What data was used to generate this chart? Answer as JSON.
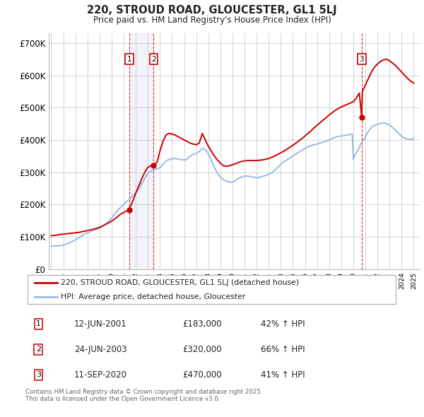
{
  "title": "220, STROUD ROAD, GLOUCESTER, GL1 5LJ",
  "subtitle": "Price paid vs. HM Land Registry's House Price Index (HPI)",
  "ylim": [
    0,
    730000
  ],
  "yticks": [
    0,
    100000,
    200000,
    300000,
    400000,
    500000,
    600000,
    700000
  ],
  "ytick_labels": [
    "£0",
    "£100K",
    "£200K",
    "£300K",
    "£400K",
    "£500K",
    "£600K",
    "£700K"
  ],
  "xlim": [
    1994.8,
    2025.5
  ],
  "background_color": "#ffffff",
  "grid_color": "#cccccc",
  "red_line_color": "#cc0000",
  "blue_line_color": "#99bbdd",
  "transactions": [
    {
      "id": 1,
      "year": 2001.45,
      "price": 183000,
      "date": "12-JUN-2001",
      "pct": "42%",
      "label": "£183,000"
    },
    {
      "id": 2,
      "year": 2003.48,
      "price": 320000,
      "date": "24-JUN-2003",
      "pct": "66%",
      "label": "£320,000"
    },
    {
      "id": 3,
      "year": 2020.69,
      "price": 470000,
      "date": "11-SEP-2020",
      "pct": "41%",
      "label": "£470,000"
    }
  ],
  "legend_line1": "220, STROUD ROAD, GLOUCESTER, GL1 5LJ (detached house)",
  "legend_line2": "HPI: Average price, detached house, Gloucester",
  "footnote": "Contains HM Land Registry data © Crown copyright and database right 2025.\nThis data is licensed under the Open Government Licence v3.0.",
  "hpi_years": [
    1995.0,
    1995.083,
    1995.167,
    1995.25,
    1995.333,
    1995.417,
    1995.5,
    1995.583,
    1995.667,
    1995.75,
    1995.833,
    1995.917,
    1996.0,
    1996.083,
    1996.167,
    1996.25,
    1996.333,
    1996.417,
    1996.5,
    1996.583,
    1996.667,
    1996.75,
    1996.833,
    1996.917,
    1997.0,
    1997.083,
    1997.167,
    1997.25,
    1997.333,
    1997.417,
    1997.5,
    1997.583,
    1997.667,
    1997.75,
    1997.833,
    1997.917,
    1998.0,
    1998.083,
    1998.167,
    1998.25,
    1998.333,
    1998.417,
    1998.5,
    1998.583,
    1998.667,
    1998.75,
    1998.833,
    1998.917,
    1999.0,
    1999.083,
    1999.167,
    1999.25,
    1999.333,
    1999.417,
    1999.5,
    1999.583,
    1999.667,
    1999.75,
    1999.833,
    1999.917,
    2000.0,
    2000.083,
    2000.167,
    2000.25,
    2000.333,
    2000.417,
    2000.5,
    2000.583,
    2000.667,
    2000.75,
    2000.833,
    2000.917,
    2001.0,
    2001.083,
    2001.167,
    2001.25,
    2001.333,
    2001.417,
    2001.5,
    2001.583,
    2001.667,
    2001.75,
    2001.833,
    2001.917,
    2002.0,
    2002.083,
    2002.167,
    2002.25,
    2002.333,
    2002.417,
    2002.5,
    2002.583,
    2002.667,
    2002.75,
    2002.833,
    2002.917,
    2003.0,
    2003.083,
    2003.167,
    2003.25,
    2003.333,
    2003.417,
    2003.5,
    2003.583,
    2003.667,
    2003.75,
    2003.833,
    2003.917,
    2004.0,
    2004.083,
    2004.167,
    2004.25,
    2004.333,
    2004.417,
    2004.5,
    2004.583,
    2004.667,
    2004.75,
    2004.833,
    2004.917,
    2005.0,
    2005.083,
    2005.167,
    2005.25,
    2005.333,
    2005.417,
    2005.5,
    2005.583,
    2005.667,
    2005.75,
    2005.833,
    2005.917,
    2006.0,
    2006.083,
    2006.167,
    2006.25,
    2006.333,
    2006.417,
    2006.5,
    2006.583,
    2006.667,
    2006.75,
    2006.833,
    2006.917,
    2007.0,
    2007.083,
    2007.167,
    2007.25,
    2007.333,
    2007.417,
    2007.5,
    2007.583,
    2007.667,
    2007.75,
    2007.833,
    2007.917,
    2008.0,
    2008.083,
    2008.167,
    2008.25,
    2008.333,
    2008.417,
    2008.5,
    2008.583,
    2008.667,
    2008.75,
    2008.833,
    2008.917,
    2009.0,
    2009.083,
    2009.167,
    2009.25,
    2009.333,
    2009.417,
    2009.5,
    2009.583,
    2009.667,
    2009.75,
    2009.833,
    2009.917,
    2010.0,
    2010.083,
    2010.167,
    2010.25,
    2010.333,
    2010.417,
    2010.5,
    2010.583,
    2010.667,
    2010.75,
    2010.833,
    2010.917,
    2011.0,
    2011.083,
    2011.167,
    2011.25,
    2011.333,
    2011.417,
    2011.5,
    2011.583,
    2011.667,
    2011.75,
    2011.833,
    2011.917,
    2012.0,
    2012.083,
    2012.167,
    2012.25,
    2012.333,
    2012.417,
    2012.5,
    2012.583,
    2012.667,
    2012.75,
    2012.833,
    2012.917,
    2013.0,
    2013.083,
    2013.167,
    2013.25,
    2013.333,
    2013.417,
    2013.5,
    2013.583,
    2013.667,
    2013.75,
    2013.833,
    2013.917,
    2014.0,
    2014.083,
    2014.167,
    2014.25,
    2014.333,
    2014.417,
    2014.5,
    2014.583,
    2014.667,
    2014.75,
    2014.833,
    2014.917,
    2015.0,
    2015.083,
    2015.167,
    2015.25,
    2015.333,
    2015.417,
    2015.5,
    2015.583,
    2015.667,
    2015.75,
    2015.833,
    2015.917,
    2016.0,
    2016.083,
    2016.167,
    2016.25,
    2016.333,
    2016.417,
    2016.5,
    2016.583,
    2016.667,
    2016.75,
    2016.833,
    2016.917,
    2017.0,
    2017.083,
    2017.167,
    2017.25,
    2017.333,
    2017.417,
    2017.5,
    2017.583,
    2017.667,
    2017.75,
    2017.833,
    2017.917,
    2018.0,
    2018.083,
    2018.167,
    2018.25,
    2018.333,
    2018.417,
    2018.5,
    2018.583,
    2018.667,
    2018.75,
    2018.833,
    2018.917,
    2019.0,
    2019.083,
    2019.167,
    2019.25,
    2019.333,
    2019.417,
    2019.5,
    2019.583,
    2019.667,
    2019.75,
    2019.833,
    2019.917,
    2020.0,
    2020.083,
    2020.167,
    2020.25,
    2020.333,
    2020.417,
    2020.5,
    2020.583,
    2020.667,
    2020.75,
    2020.833,
    2020.917,
    2021.0,
    2021.083,
    2021.167,
    2021.25,
    2021.333,
    2021.417,
    2021.5,
    2021.583,
    2021.667,
    2021.75,
    2021.833,
    2021.917,
    2022.0,
    2022.083,
    2022.167,
    2022.25,
    2022.333,
    2022.417,
    2022.5,
    2022.583,
    2022.667,
    2022.75,
    2022.833,
    2022.917,
    2023.0,
    2023.083,
    2023.167,
    2023.25,
    2023.333,
    2023.417,
    2023.5,
    2023.583,
    2023.667,
    2023.75,
    2023.833,
    2023.917,
    2024.0,
    2024.083,
    2024.167,
    2024.25,
    2024.333,
    2024.417,
    2024.5,
    2024.583,
    2024.667,
    2024.75,
    2024.833,
    2024.917,
    2025.0
  ],
  "hpi_values": [
    70000,
    70500,
    71000,
    71200,
    71400,
    71600,
    71800,
    72000,
    72200,
    72500,
    72800,
    73200,
    74000,
    75000,
    76000,
    77000,
    78000,
    79000,
    80500,
    82000,
    83500,
    85000,
    87000,
    88500,
    90000,
    92000,
    94000,
    96000,
    98000,
    100000,
    102000,
    104000,
    106000,
    108000,
    110000,
    111000,
    112000,
    113000,
    114000,
    115500,
    117000,
    118500,
    120000,
    121000,
    122000,
    123000,
    124000,
    125000,
    126000,
    128000,
    130000,
    132000,
    134500,
    137000,
    139500,
    142000,
    145000,
    148000,
    151000,
    154000,
    158000,
    162000,
    166000,
    170000,
    174000,
    178000,
    182000,
    185000,
    188000,
    191000,
    194000,
    197000,
    200000,
    203000,
    206000,
    209000,
    212000,
    215000,
    218000,
    221000,
    224000,
    227000,
    230000,
    233000,
    236000,
    240000,
    244000,
    248000,
    252000,
    258000,
    264000,
    270000,
    276000,
    281000,
    286000,
    291000,
    296000,
    299000,
    301000,
    303000,
    305000,
    306000,
    307000,
    308000,
    309000,
    310000,
    311000,
    312000,
    314000,
    317000,
    320000,
    324000,
    328000,
    331000,
    334000,
    336000,
    338000,
    339000,
    340000,
    341000,
    341500,
    342000,
    342000,
    342000,
    341500,
    341000,
    340500,
    340000,
    339500,
    339000,
    338500,
    338000,
    337500,
    338000,
    339000,
    341000,
    344000,
    347000,
    350000,
    352000,
    354000,
    355000,
    356000,
    357000,
    358000,
    360000,
    362000,
    364000,
    367000,
    370000,
    372000,
    373000,
    372000,
    370000,
    367000,
    362000,
    356000,
    350000,
    343000,
    336000,
    329000,
    322000,
    315000,
    309000,
    303000,
    298000,
    293000,
    289000,
    285000,
    282000,
    279500,
    277000,
    275000,
    273500,
    272000,
    271000,
    270500,
    270000,
    269500,
    269000,
    269500,
    270500,
    272000,
    274000,
    276000,
    278000,
    280000,
    282000,
    284000,
    285000,
    286000,
    287000,
    287500,
    288000,
    288000,
    287500,
    287000,
    286500,
    286000,
    285500,
    285000,
    284500,
    284000,
    283500,
    283000,
    283000,
    283500,
    284000,
    285000,
    286000,
    287000,
    288000,
    289000,
    290000,
    291000,
    292000,
    293000,
    294500,
    296000,
    298000,
    300500,
    303000,
    306000,
    309000,
    312000,
    315000,
    318000,
    321000,
    324000,
    327000,
    329500,
    332000,
    334000,
    336000,
    338000,
    340000,
    342000,
    344000,
    346000,
    348000,
    350000,
    352000,
    354000,
    356000,
    358000,
    360000,
    362000,
    364000,
    366000,
    368000,
    370000,
    371500,
    373000,
    375000,
    377000,
    378500,
    380000,
    381000,
    382000,
    383000,
    384000,
    385000,
    385500,
    386000,
    387000,
    388000,
    389000,
    390000,
    391000,
    392000,
    393000,
    394000,
    395000,
    396000,
    397000,
    398000,
    399500,
    401000,
    402500,
    404000,
    405500,
    407000,
    408000,
    409000,
    410000,
    410500,
    411000,
    411500,
    412000,
    412500,
    413000,
    413500,
    414000,
    414500,
    415000,
    415500,
    416000,
    416500,
    417000,
    417500,
    340000,
    348000,
    356000,
    360000,
    365000,
    370000,
    377000,
    384000,
    390000,
    395000,
    400000,
    403000,
    408000,
    415000,
    422000,
    426000,
    430000,
    434000,
    438000,
    441000,
    443000,
    445000,
    446000,
    447000,
    448000,
    449000,
    450000,
    451000,
    452000,
    453000,
    452500,
    452000,
    451000,
    450000,
    449000,
    448000,
    446000,
    444000,
    441000,
    438000,
    435000,
    432000,
    429000,
    426000,
    423000,
    420000,
    417000,
    414000,
    411000,
    409000,
    407000,
    405500,
    404000,
    403000,
    402500,
    402000,
    401500,
    401500,
    402000,
    403000,
    405000
  ],
  "red_years": [
    1995.0,
    1995.25,
    1995.5,
    1995.75,
    1996.0,
    1996.25,
    1996.5,
    1996.75,
    1997.0,
    1997.25,
    1997.5,
    1997.75,
    1998.0,
    1998.25,
    1998.5,
    1998.75,
    1999.0,
    1999.25,
    1999.5,
    1999.75,
    2000.0,
    2000.25,
    2000.5,
    2000.75,
    2001.0,
    2001.25,
    2001.45,
    2001.5,
    2001.75,
    2002.0,
    2002.25,
    2002.5,
    2002.75,
    2003.0,
    2003.25,
    2003.48,
    2003.5,
    2003.75,
    2004.0,
    2004.25,
    2004.5,
    2004.75,
    2005.0,
    2005.25,
    2005.5,
    2005.75,
    2006.0,
    2006.25,
    2006.5,
    2006.75,
    2007.0,
    2007.25,
    2007.5,
    2007.75,
    2008.0,
    2008.25,
    2008.5,
    2008.75,
    2009.0,
    2009.25,
    2009.5,
    2009.75,
    2010.0,
    2010.25,
    2010.5,
    2010.75,
    2011.0,
    2011.25,
    2011.5,
    2011.75,
    2012.0,
    2012.25,
    2012.5,
    2012.75,
    2013.0,
    2013.25,
    2013.5,
    2013.75,
    2014.0,
    2014.25,
    2014.5,
    2014.75,
    2015.0,
    2015.25,
    2015.5,
    2015.75,
    2016.0,
    2016.25,
    2016.5,
    2016.75,
    2017.0,
    2017.25,
    2017.5,
    2017.75,
    2018.0,
    2018.25,
    2018.5,
    2018.75,
    2019.0,
    2019.25,
    2019.5,
    2019.75,
    2020.0,
    2020.25,
    2020.5,
    2020.69,
    2020.75,
    2021.0,
    2021.25,
    2021.5,
    2021.75,
    2022.0,
    2022.25,
    2022.5,
    2022.75,
    2023.0,
    2023.25,
    2023.5,
    2023.75,
    2024.0,
    2024.25,
    2024.5,
    2024.75,
    2025.0
  ],
  "red_values": [
    103000,
    104000,
    105000,
    107000,
    108000,
    109000,
    110000,
    111000,
    112000,
    113000,
    115000,
    117000,
    119000,
    121000,
    123000,
    126000,
    129000,
    133000,
    138000,
    143000,
    148000,
    155000,
    162000,
    170000,
    175000,
    180000,
    183000,
    190000,
    210000,
    235000,
    258000,
    280000,
    300000,
    315000,
    320000,
    320000,
    322000,
    330000,
    365000,
    395000,
    415000,
    420000,
    418000,
    415000,
    410000,
    405000,
    400000,
    395000,
    390000,
    387000,
    385000,
    390000,
    420000,
    400000,
    380000,
    365000,
    350000,
    338000,
    328000,
    320000,
    318000,
    320000,
    323000,
    326000,
    330000,
    333000,
    335000,
    336000,
    336000,
    336000,
    336000,
    337000,
    338000,
    340000,
    342000,
    346000,
    350000,
    355000,
    360000,
    365000,
    371000,
    377000,
    383000,
    390000,
    397000,
    404000,
    412000,
    420000,
    428000,
    437000,
    445000,
    453000,
    461000,
    469000,
    477000,
    484000,
    491000,
    497000,
    502000,
    506000,
    510000,
    514000,
    518000,
    530000,
    545000,
    470000,
    550000,
    570000,
    590000,
    610000,
    625000,
    635000,
    643000,
    648000,
    650000,
    645000,
    638000,
    630000,
    620000,
    610000,
    600000,
    590000,
    582000,
    576000
  ]
}
